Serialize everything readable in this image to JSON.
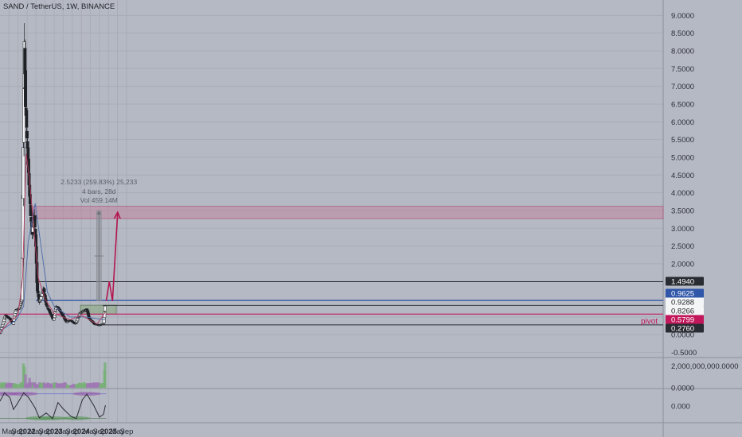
{
  "header": {
    "title": "SAND / TetherUS, 1W, BINANCE"
  },
  "colors": {
    "background": "#b5b9c3",
    "up_candle": "#f2f3f5",
    "down_candle": "#1f2126",
    "ma_fast": "#b23a5e",
    "ma_slow": "#4a6aa8",
    "projection": "#b3164f",
    "pivot_line": "#c2185b",
    "blue_level": "#2f56a8"
  },
  "measure_tool": {
    "line1": "2.5233 (259.83%) 25,233",
    "line2": "4 bars, 28d",
    "line3": "Vol 459.14M"
  },
  "annotations": {
    "pivot": "pivot"
  },
  "chart_data": [
    {
      "type": "candlestick",
      "title": "SAND / TetherUS, 1W, BINANCE",
      "ylim": [
        -0.6,
        9.3
      ],
      "y_ticks": [
        "9.0000",
        "8.5000",
        "8.0000",
        "7.5000",
        "7.0000",
        "6.5000",
        "6.0000",
        "5.5000",
        "5.0000",
        "4.5000",
        "4.0000",
        "3.5000",
        "3.0000",
        "2.5000",
        "2.0000",
        "1.5000",
        "1.0000",
        "0.5000",
        "0.0000",
        "-0.5000"
      ],
      "x_labels": [
        "May",
        "Sep",
        "2022",
        "May",
        "Sep",
        "2023",
        "May",
        "Sep",
        "2024",
        "May",
        "Sep",
        "2025",
        "May",
        "Sep"
      ],
      "price_labels": [
        {
          "value": 1.494,
          "text": "1.4940",
          "style": "dark"
        },
        {
          "value": 0.9625,
          "text": "0.9625",
          "style": "blue"
        },
        {
          "value": 0.9288,
          "text": "0.9288",
          "style": "light"
        },
        {
          "value": 0.8266,
          "text": "0.8266",
          "style": "light"
        },
        {
          "value": 0.5799,
          "text": "0.5799",
          "style": "red"
        },
        {
          "value": 0.276,
          "text": "0.2760",
          "style": "dark"
        }
      ],
      "horizontal_levels": [
        {
          "name": "resistance",
          "value": 1.494
        },
        {
          "name": "blue-level",
          "value": 0.9625
        },
        {
          "name": "pivot",
          "value": 0.5799
        },
        {
          "name": "support",
          "value": 0.276
        }
      ],
      "zones": [
        {
          "name": "target-zone",
          "from": 3.27,
          "to": 3.62
        },
        {
          "name": "accumulation-zone",
          "from": 0.58,
          "to": 0.83
        }
      ],
      "projection_path": [
        {
          "date": "2024-12-01",
          "value": 0.95
        },
        {
          "date": "2025-01-12",
          "value": 1.5
        },
        {
          "date": "2025-02-23",
          "value": 0.95
        },
        {
          "date": "2025-05-04",
          "value": 3.45
        }
      ],
      "series": [
        {
          "name": "price",
          "points": [
            {
              "date": "2021-01-01",
              "value": 0.05
            },
            {
              "date": "2021-03-15",
              "value": 0.55
            },
            {
              "date": "2021-05-15",
              "value": 0.45
            },
            {
              "date": "2021-06-25",
              "value": 0.3
            },
            {
              "date": "2021-08-01",
              "value": 0.7
            },
            {
              "date": "2021-09-20",
              "value": 0.75
            },
            {
              "date": "2021-10-25",
              "value": 1.0
            },
            {
              "date": "2021-11-01",
              "value": 3.0
            },
            {
              "date": "2021-11-15",
              "value": 6.0
            },
            {
              "date": "2021-11-25",
              "value": 8.4
            },
            {
              "date": "2021-12-10",
              "value": 6.5
            },
            {
              "date": "2022-01-15",
              "value": 4.8
            },
            {
              "date": "2022-02-20",
              "value": 3.3
            },
            {
              "date": "2022-03-10",
              "value": 2.8
            },
            {
              "date": "2022-04-05",
              "value": 3.4
            },
            {
              "date": "2022-05-01",
              "value": 2.4
            },
            {
              "date": "2022-05-15",
              "value": 1.3
            },
            {
              "date": "2022-06-15",
              "value": 0.9
            },
            {
              "date": "2022-08-10",
              "value": 1.3
            },
            {
              "date": "2022-09-15",
              "value": 0.85
            },
            {
              "date": "2022-11-10",
              "value": 0.6
            },
            {
              "date": "2022-12-25",
              "value": 0.4
            },
            {
              "date": "2023-01-25",
              "value": 0.8
            },
            {
              "date": "2023-03-01",
              "value": 0.75
            },
            {
              "date": "2023-06-15",
              "value": 0.35
            },
            {
              "date": "2023-08-01",
              "value": 0.42
            },
            {
              "date": "2023-10-15",
              "value": 0.3
            },
            {
              "date": "2023-12-15",
              "value": 0.62
            },
            {
              "date": "2024-03-15",
              "value": 0.72
            },
            {
              "date": "2024-04-15",
              "value": 0.45
            },
            {
              "date": "2024-07-01",
              "value": 0.3
            },
            {
              "date": "2024-09-01",
              "value": 0.27
            },
            {
              "date": "2024-10-25",
              "value": 0.32
            },
            {
              "date": "2024-11-20",
              "value": 0.92
            }
          ]
        },
        {
          "name": "ma-fast",
          "points": [
            {
              "date": "2021-01-01",
              "value": 0.05
            },
            {
              "date": "2021-05-01",
              "value": 0.35
            },
            {
              "date": "2021-09-01",
              "value": 0.55
            },
            {
              "date": "2021-11-01",
              "value": 1.6
            },
            {
              "date": "2021-12-20",
              "value": 5.1
            },
            {
              "date": "2022-02-01",
              "value": 4.4
            },
            {
              "date": "2022-04-01",
              "value": 3.0
            },
            {
              "date": "2022-06-01",
              "value": 1.6
            },
            {
              "date": "2022-09-01",
              "value": 1.0
            },
            {
              "date": "2023-01-01",
              "value": 0.6
            },
            {
              "date": "2023-08-01",
              "value": 0.42
            },
            {
              "date": "2024-01-01",
              "value": 0.55
            },
            {
              "date": "2024-08-01",
              "value": 0.3
            },
            {
              "date": "2024-11-15",
              "value": 0.62
            }
          ]
        },
        {
          "name": "ma-slow",
          "points": [
            {
              "date": "2021-01-01",
              "value": 0.1
            },
            {
              "date": "2021-08-01",
              "value": 0.4
            },
            {
              "date": "2021-11-15",
              "value": 0.8
            },
            {
              "date": "2022-01-15",
              "value": 2.6
            },
            {
              "date": "2022-04-20",
              "value": 3.7
            },
            {
              "date": "2022-07-01",
              "value": 2.6
            },
            {
              "date": "2022-10-01",
              "value": 1.2
            },
            {
              "date": "2023-01-01",
              "value": 0.8
            },
            {
              "date": "2023-08-01",
              "value": 0.5
            },
            {
              "date": "2024-03-01",
              "value": 0.5
            },
            {
              "date": "2024-11-15",
              "value": 0.42
            }
          ]
        }
      ]
    },
    {
      "type": "bar",
      "name": "volume",
      "y_ticks": [
        "2,000,000,000.0000",
        "0.0000"
      ],
      "ylim": [
        0,
        2600000000
      ],
      "spikes": [
        {
          "date": "2021-11-15",
          "value": 2200000000
        },
        {
          "date": "2021-11-29",
          "value": 1900000000
        },
        {
          "date": "2021-12-13",
          "value": 1200000000
        },
        {
          "date": "2022-02-01",
          "value": 900000000
        },
        {
          "date": "2024-11-10",
          "value": 1600000000
        },
        {
          "date": "2024-11-17",
          "value": 2300000000
        },
        {
          "date": "2024-11-24",
          "value": 1800000000
        }
      ]
    },
    {
      "type": "line",
      "name": "oscillator",
      "y_ticks": [
        "0.000"
      ],
      "ylim": [
        -1.2,
        1.2
      ],
      "points": [
        {
          "date": "2021-01-01",
          "value": 0.35
        },
        {
          "date": "2021-03-01",
          "value": 0.95
        },
        {
          "date": "2021-05-15",
          "value": 0.6
        },
        {
          "date": "2021-07-01",
          "value": -0.25
        },
        {
          "date": "2021-08-20",
          "value": 0.15
        },
        {
          "date": "2021-11-15",
          "value": 0.95
        },
        {
          "date": "2022-01-15",
          "value": 0.65
        },
        {
          "date": "2022-04-15",
          "value": -0.1
        },
        {
          "date": "2022-06-15",
          "value": -0.85
        },
        {
          "date": "2022-09-15",
          "value": -0.5
        },
        {
          "date": "2022-12-10",
          "value": -0.9
        },
        {
          "date": "2023-02-20",
          "value": 0.25
        },
        {
          "date": "2023-05-01",
          "value": -0.2
        },
        {
          "date": "2023-08-15",
          "value": -0.75
        },
        {
          "date": "2023-10-25",
          "value": -0.9
        },
        {
          "date": "2024-01-15",
          "value": 0.45
        },
        {
          "date": "2024-03-15",
          "value": 0.85
        },
        {
          "date": "2024-06-15",
          "value": 0.05
        },
        {
          "date": "2024-09-01",
          "value": -0.8
        },
        {
          "date": "2024-10-25",
          "value": -0.6
        },
        {
          "date": "2024-11-20",
          "value": 0.05
        }
      ]
    }
  ]
}
